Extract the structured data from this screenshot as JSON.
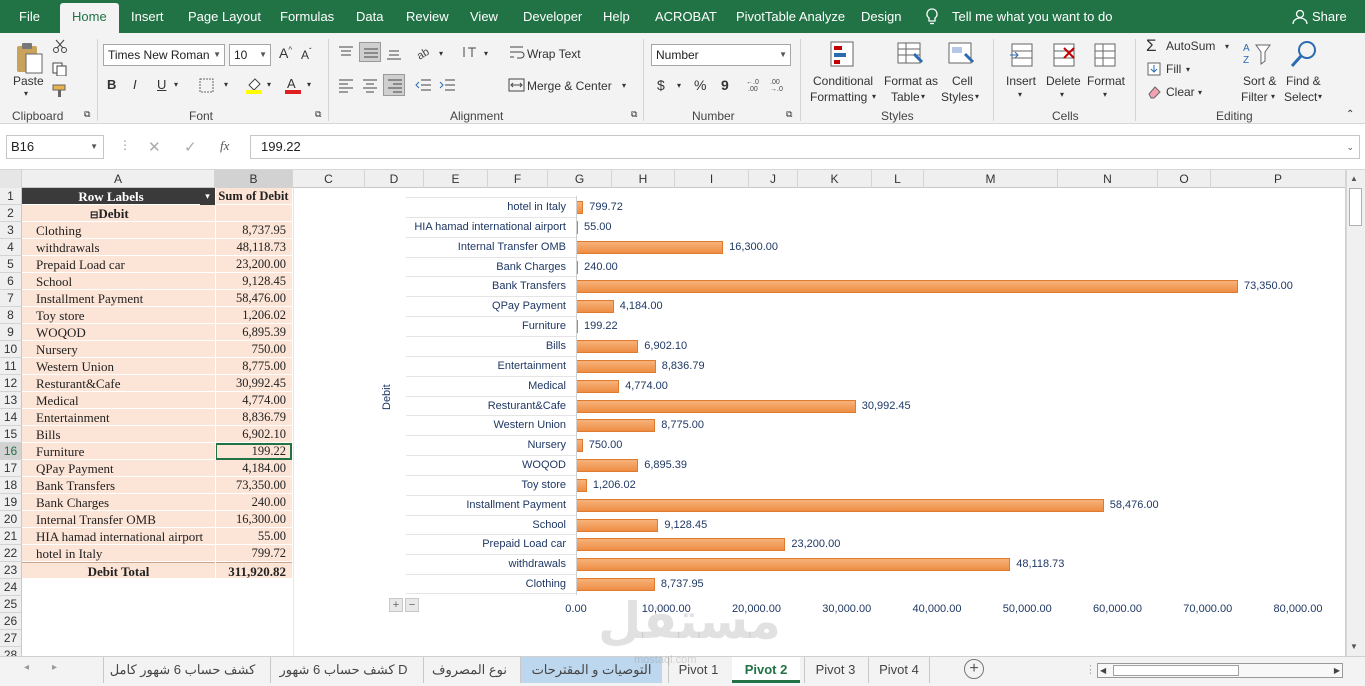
{
  "menu": {
    "tabs": [
      "File",
      "Home",
      "Insert",
      "Page Layout",
      "Formulas",
      "Data",
      "Review",
      "View",
      "Developer",
      "Help",
      "ACROBAT",
      "PivotTable Analyze",
      "Design"
    ],
    "active": "Home",
    "tell_me": "Tell me what you want to do",
    "share": "Share"
  },
  "ribbon": {
    "clipboard": {
      "paste": "Paste",
      "label": "Clipboard"
    },
    "font": {
      "name": "Times New Roman",
      "size": "10",
      "label": "Font",
      "bold": "B",
      "italic": "I",
      "underline": "U"
    },
    "alignment": {
      "wrap": "Wrap Text",
      "merge": "Merge & Center",
      "label": "Alignment"
    },
    "number": {
      "format": "Number",
      "currency": "$",
      "percent": "%",
      "comma": "9",
      "label": "Number"
    },
    "styles": {
      "conditional": "Conditional",
      "conditional2": "Formatting",
      "format_table": "Format as",
      "format_table2": "Table",
      "cell_styles": "Cell",
      "cell_styles2": "Styles",
      "label": "Styles"
    },
    "cells": {
      "insert": "Insert",
      "delete": "Delete",
      "format": "Format",
      "label": "Cells"
    },
    "editing": {
      "autosum": "AutoSum",
      "fill": "Fill",
      "clear": "Clear",
      "sort": "Sort &",
      "sort2": "Filter",
      "find": "Find &",
      "find2": "Select",
      "label": "Editing"
    }
  },
  "formula_bar": {
    "name_box": "B16",
    "fx": "fx",
    "value": "199.22"
  },
  "columns": [
    "A",
    "B",
    "C",
    "D",
    "E",
    "F",
    "G",
    "H",
    "I",
    "J",
    "K",
    "L",
    "M",
    "N",
    "O",
    "P"
  ],
  "rows": [
    "1",
    "2",
    "3",
    "4",
    "5",
    "6",
    "7",
    "8",
    "9",
    "10",
    "11",
    "12",
    "13",
    "14",
    "15",
    "16",
    "17",
    "18",
    "19",
    "20",
    "21",
    "22",
    "23",
    "24",
    "25",
    "26",
    "27",
    "28"
  ],
  "pivot": {
    "header_a": "Row Labels",
    "header_b": "Sum of Debit",
    "group": "Debit",
    "group_toggle": "⊟",
    "items": [
      {
        "label": "Clothing",
        "value": "8,737.95"
      },
      {
        "label": "withdrawals",
        "value": "48,118.73"
      },
      {
        "label": "Prepaid Load car",
        "value": "23,200.00"
      },
      {
        "label": "School",
        "value": "9,128.45"
      },
      {
        "label": "Installment Payment",
        "value": "58,476.00"
      },
      {
        "label": "Toy store",
        "value": "1,206.02"
      },
      {
        "label": "WOQOD",
        "value": "6,895.39"
      },
      {
        "label": "Nursery",
        "value": "750.00"
      },
      {
        "label": "Western Union",
        "value": "8,775.00"
      },
      {
        "label": "Resturant&Cafe",
        "value": "30,992.45"
      },
      {
        "label": "Medical",
        "value": "4,774.00"
      },
      {
        "label": "Entertainment",
        "value": "8,836.79"
      },
      {
        "label": "Bills",
        "value": "6,902.10"
      },
      {
        "label": "Furniture",
        "value": "199.22"
      },
      {
        "label": "QPay Payment",
        "value": "4,184.00"
      },
      {
        "label": "Bank Transfers",
        "value": "73,350.00"
      },
      {
        "label": "Bank Charges",
        "value": "240.00"
      },
      {
        "label": "Internal Transfer OMB",
        "value": "16,300.00"
      },
      {
        "label": "HIA hamad international airport",
        "value": "55.00"
      },
      {
        "label": "hotel in Italy",
        "value": "799.72"
      }
    ],
    "total_label": "Debit Total",
    "total_value": "311,920.82"
  },
  "chart_data": {
    "type": "bar",
    "orientation": "horizontal",
    "ylabel": "Debit",
    "categories": [
      "hotel in Italy",
      "HIA hamad international airport",
      "Internal Transfer OMB",
      "Bank Charges",
      "Bank Transfers",
      "QPay Payment",
      "Furniture",
      "Bills",
      "Entertainment",
      "Medical",
      "Resturant&Cafe",
      "Western Union",
      "Nursery",
      "WOQOD",
      "Toy store",
      "Installment Payment",
      "School",
      "Prepaid Load car",
      "withdrawals",
      "Clothing"
    ],
    "values": [
      799.72,
      55.0,
      16300.0,
      240.0,
      73350.0,
      4184.0,
      199.22,
      6902.1,
      8836.79,
      4774.0,
      30992.45,
      8775.0,
      750.0,
      6895.39,
      1206.02,
      58476.0,
      9128.45,
      23200.0,
      48118.73,
      8737.95
    ],
    "value_labels": [
      "799.72",
      "55.00",
      "16,300.00",
      "240.00",
      "73,350.00",
      "4,184.00",
      "199.22",
      "6,902.10",
      "8,836.79",
      "4,774.00",
      "30,992.45",
      "8,775.00",
      "750.00",
      "6,895.39",
      "1,206.02",
      "58,476.00",
      "9,128.45",
      "23,200.00",
      "48,118.73",
      "8,737.95"
    ],
    "xlim": [
      0,
      80000
    ],
    "xticks": [
      "0.00",
      "10,000.00",
      "20,000.00",
      "30,000.00",
      "40,000.00",
      "50,000.00",
      "60,000.00",
      "70,000.00",
      "80,000.00"
    ],
    "color": "#f4a460"
  },
  "sheets": {
    "tabs": [
      "كشف حساب 6 شهور كامل",
      "كشف حساب 6 شهور D",
      "نوع المصروف",
      "التوصيات و المقترحات",
      "Pivot 1",
      "Pivot 2",
      "Pivot 3",
      "Pivot 4"
    ],
    "active": "Pivot 2",
    "highlighted": "التوصيات و المقترحات"
  },
  "watermark": {
    "text": "مستقل",
    "sub": "mostaql.com"
  }
}
